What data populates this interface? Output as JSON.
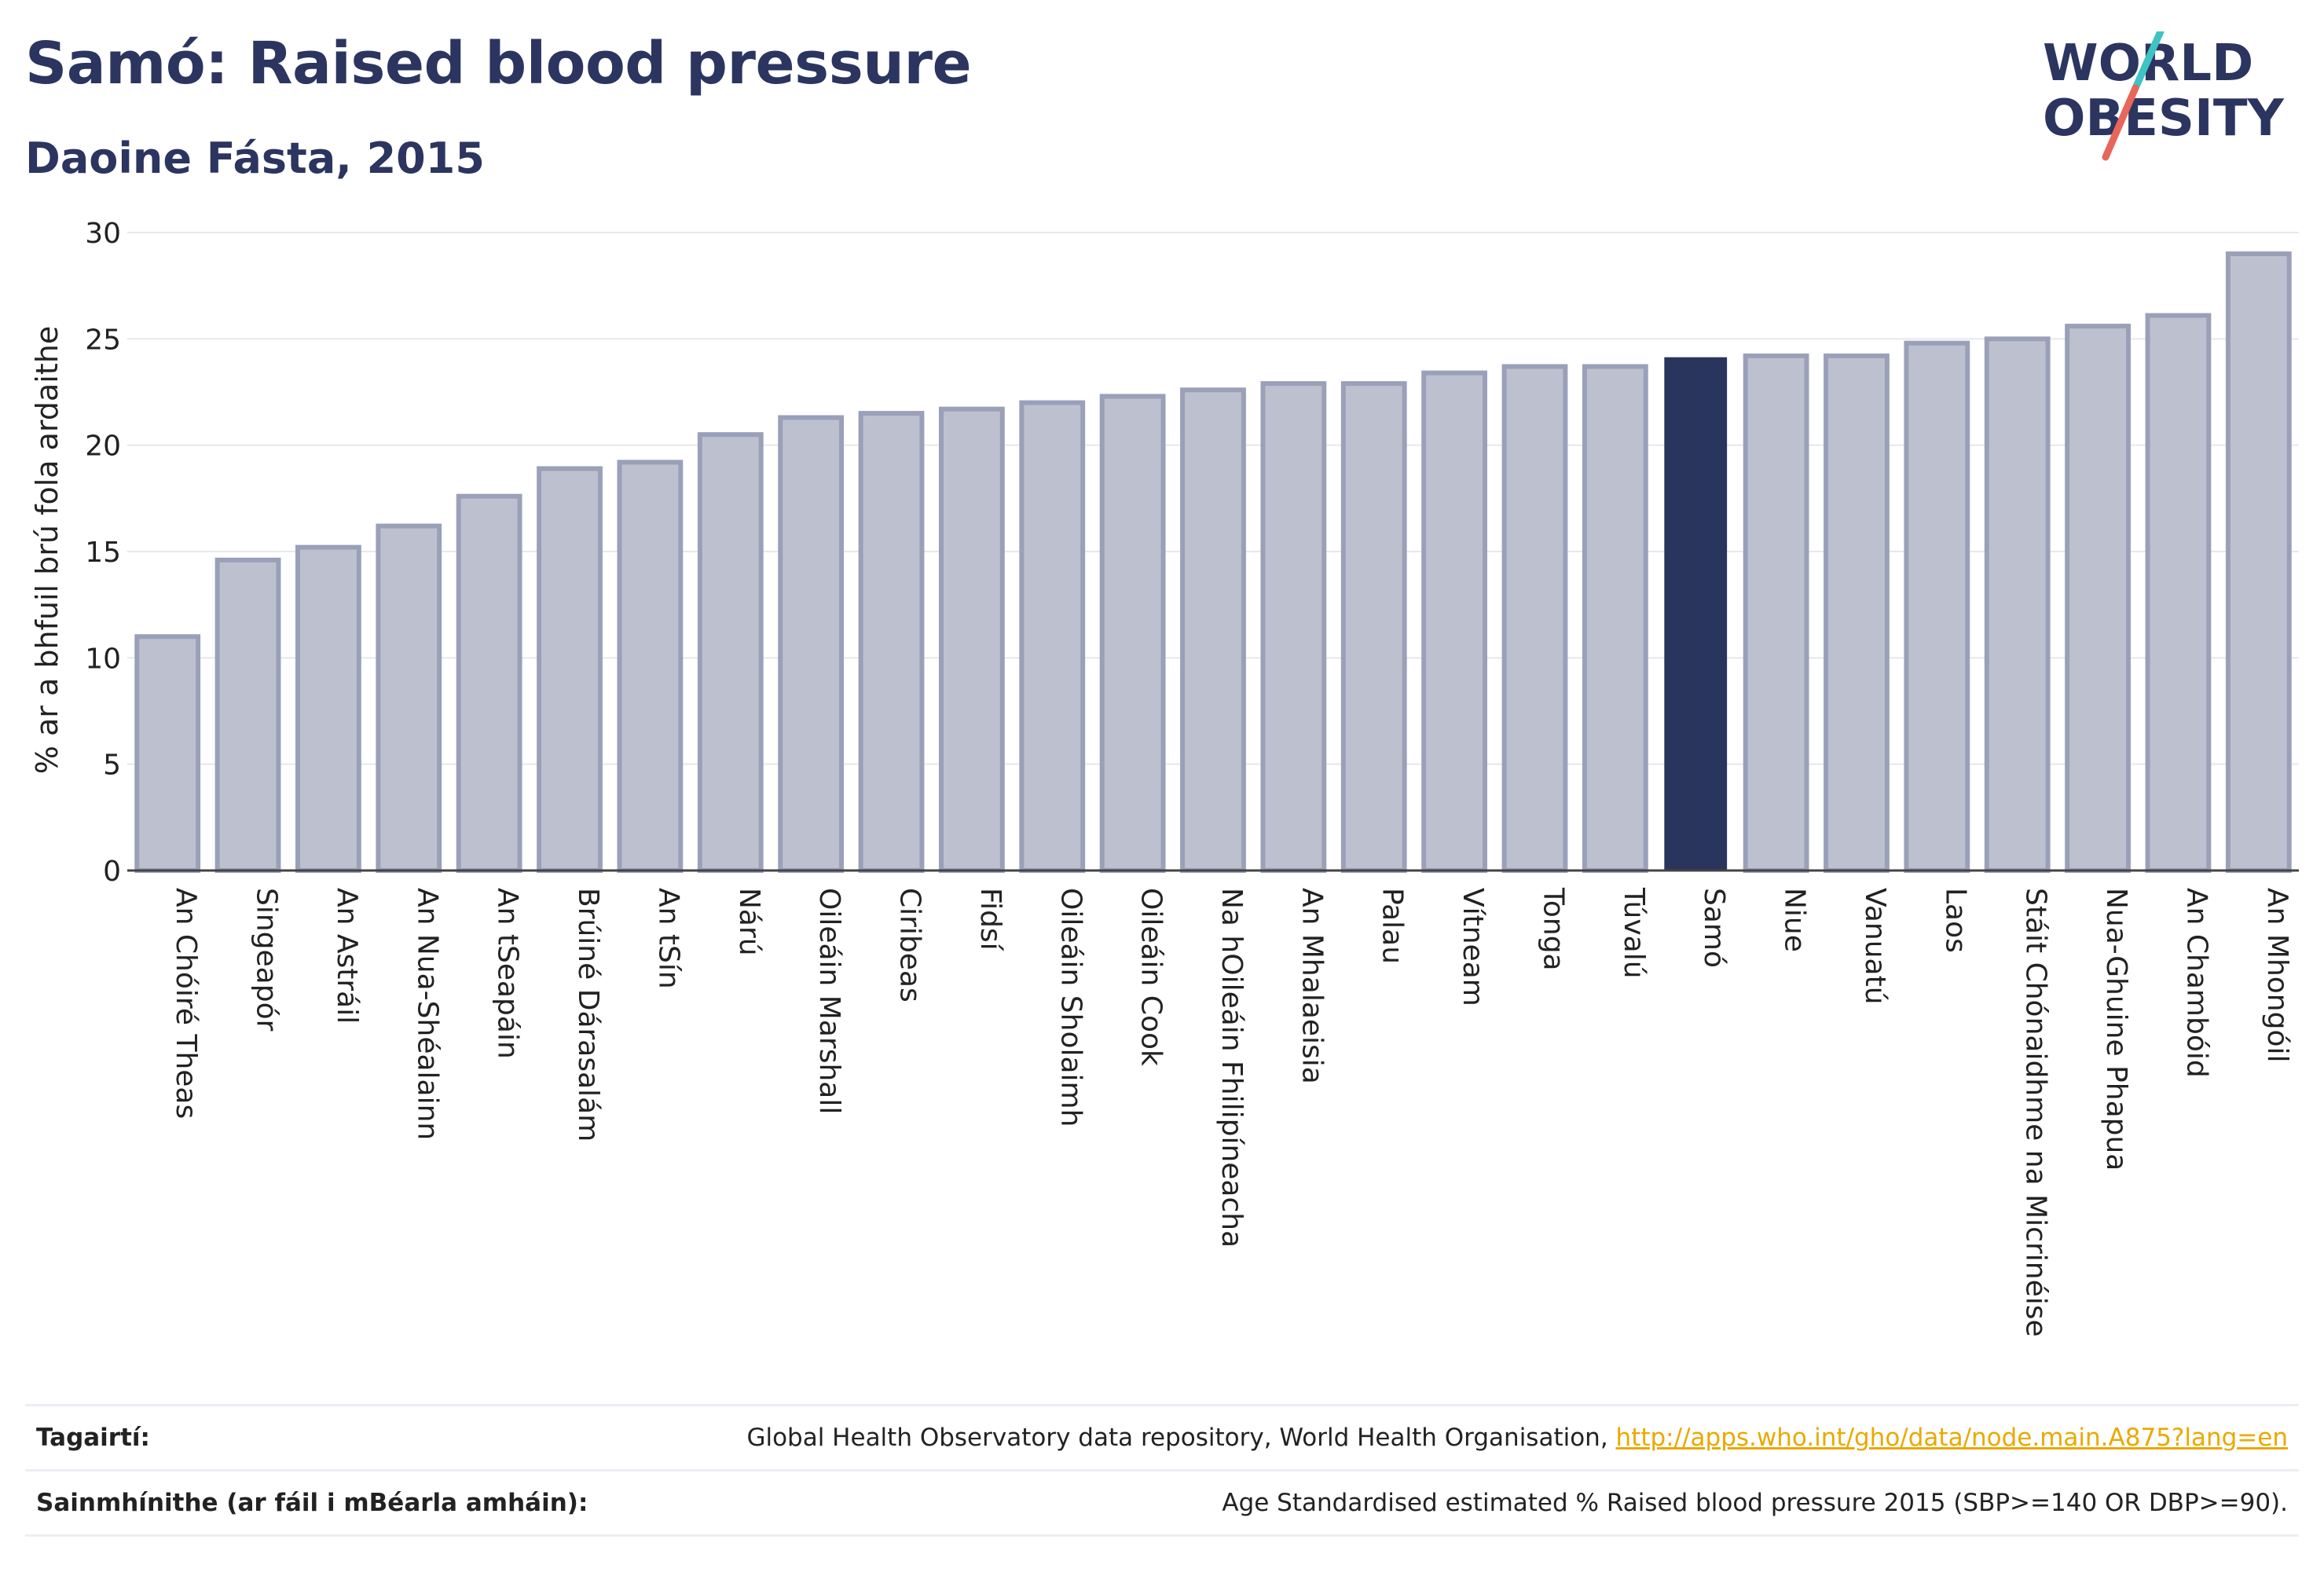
{
  "header": {
    "title": "Samó: Raised blood pressure",
    "subtitle": "Daoine Fásta, 2015"
  },
  "logo": {
    "line1": "WORLD",
    "line2": "OBESITY",
    "slash_colors": [
      "#3fc3c4",
      "#e8665a"
    ]
  },
  "colors": {
    "highlight": "#2a355e",
    "bar_fill": "#bdc1cf",
    "bar_stroke": "#9aa0b8",
    "text_dark": "#2b3560",
    "link": "#e9a900"
  },
  "chart_data": {
    "type": "bar",
    "ylabel": "% ar a bhfuil brú fola ardaithe",
    "ylim": [
      0,
      30
    ],
    "yticks": [
      "0",
      "5",
      "10",
      "15",
      "20",
      "25",
      "30"
    ],
    "grid": true,
    "highlight_category": "Samó",
    "categories": [
      "An Chóiré Theas",
      "Singeapór",
      "An Astráil",
      "An Nua-Shéalainn",
      "An tSeapáin",
      "Brúiné Dárasalám",
      "An tSín",
      "Nárú",
      "Oileáin Marshall",
      "Ciribeas",
      "Fidsí",
      "Oileáin Sholaimh",
      "Oileáin Cook",
      "Na hOileáin Fhilipíneacha",
      "An Mhalaeisia",
      "Palau",
      "Vítneam",
      "Tonga",
      "Túvalú",
      "Samó",
      "Niue",
      "Vanuatú",
      "Laos",
      "Stáit Chónaidhme na Micrinéise",
      "Nua-Ghuine Phapua",
      "An Chambóid",
      "An Mhongóil"
    ],
    "values": [
      11.0,
      14.6,
      15.2,
      16.2,
      17.6,
      18.9,
      19.2,
      20.5,
      21.3,
      21.5,
      21.7,
      22.0,
      22.3,
      22.6,
      22.9,
      22.9,
      23.4,
      23.7,
      23.7,
      24.1,
      24.2,
      24.2,
      24.8,
      25.0,
      25.6,
      26.1,
      29.0
    ]
  },
  "references": {
    "sources_label": "Tagairtí:",
    "sources_text": "Global Health Observatory data repository, World Health Organisation, ",
    "sources_link": "http://apps.who.int/gho/data/node.main.A875?lang=en",
    "definitions_label": "Sainmhínithe (ar fáil i mBéarla amháin):",
    "definitions_text": "Age Standardised estimated % Raised blood pressure 2015 (SBP>=140 OR DBP>=90)."
  }
}
